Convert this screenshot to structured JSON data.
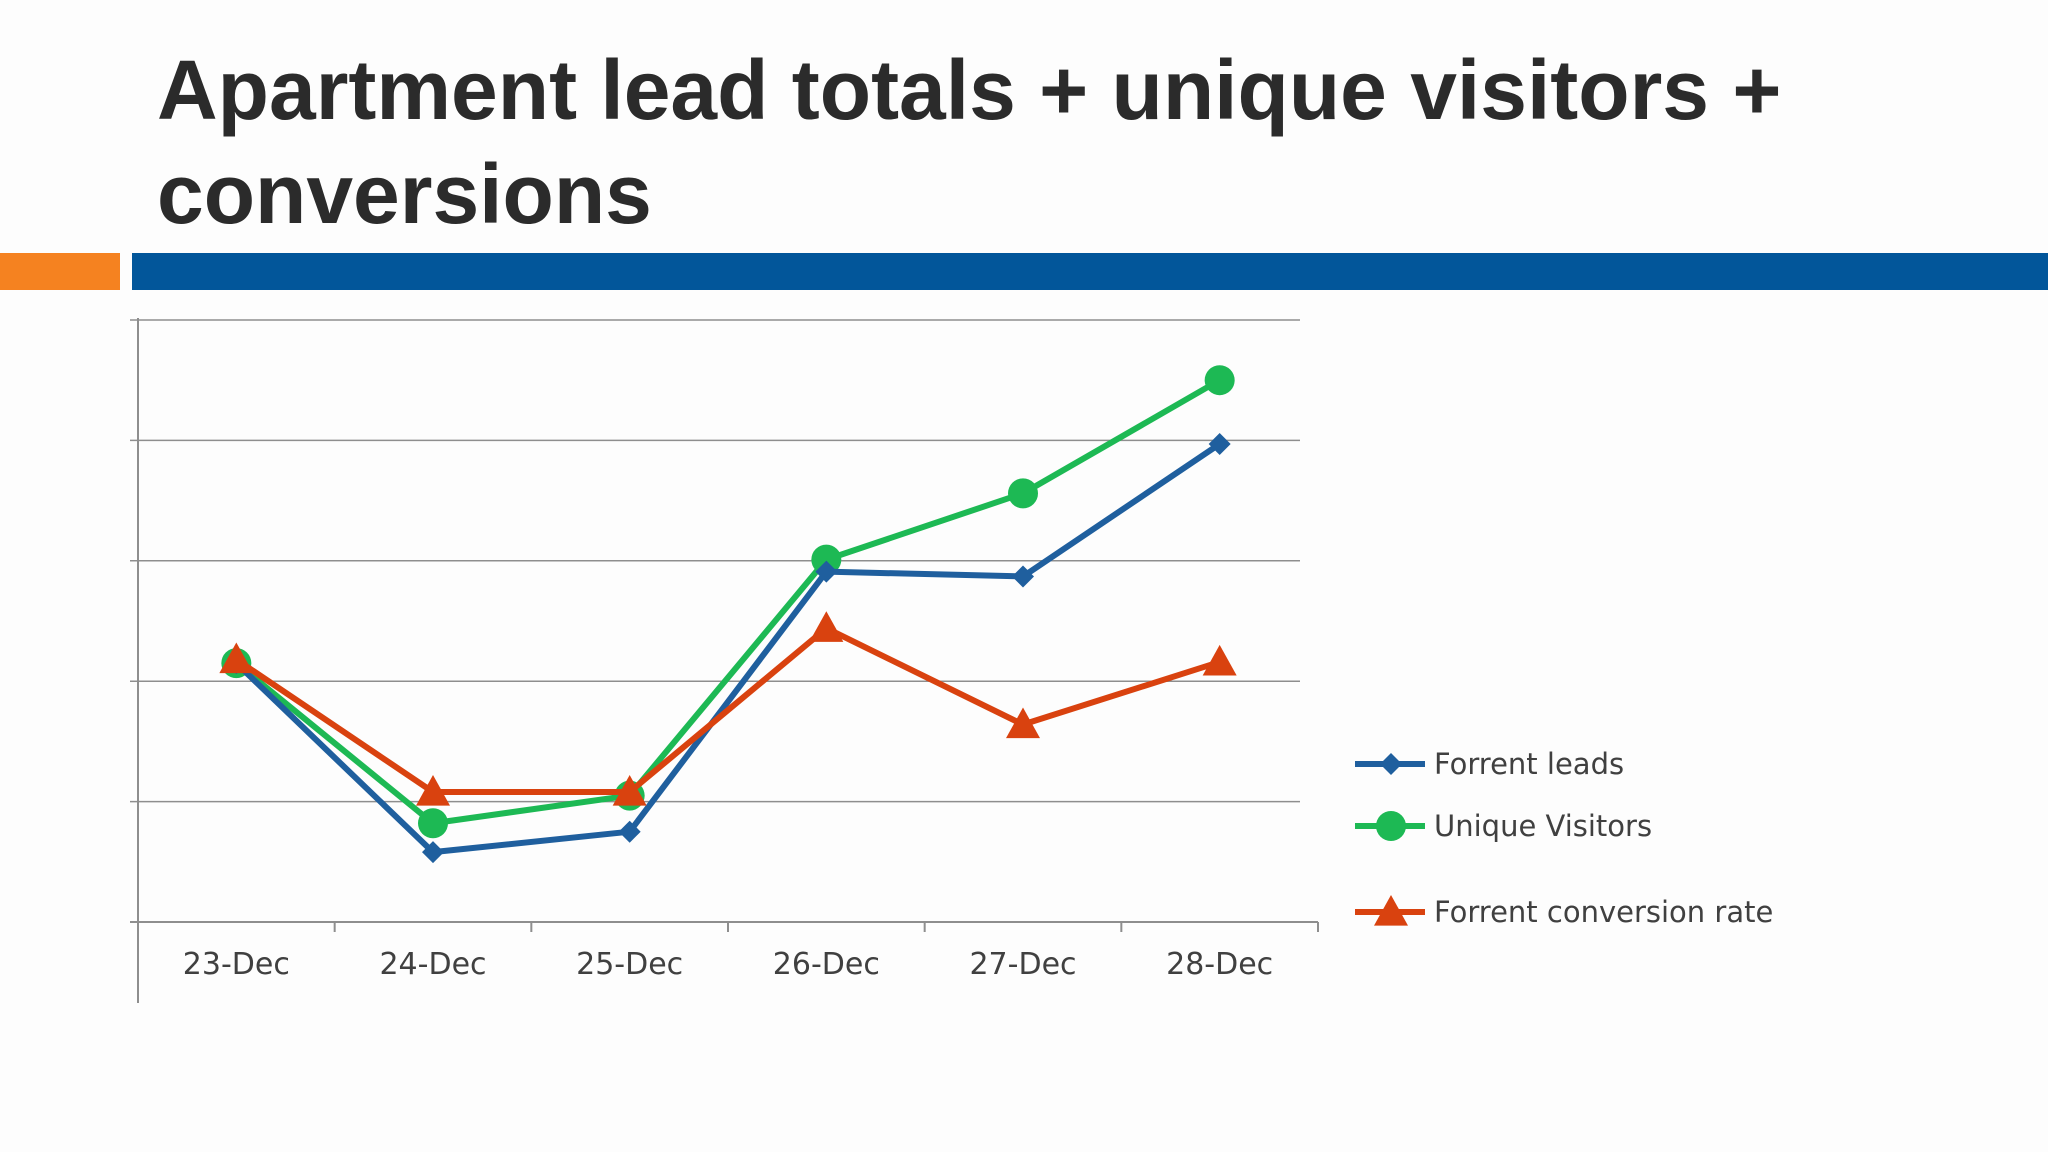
{
  "slide": {
    "title": "Apartment lead totals + unique visitors + conversions",
    "accent_colors": {
      "orange": "#f58220",
      "blue": "#02569a"
    }
  },
  "chart_data": {
    "type": "line",
    "title": "Apartment lead totals + unique visitors + conversions",
    "xlabel": "",
    "ylabel": "",
    "categories": [
      "23-Dec",
      "24-Dec",
      "25-Dec",
      "26-Dec",
      "27-Dec",
      "28-Dec"
    ],
    "ylim": [
      0,
      5
    ],
    "y_tick_labels_shown": false,
    "grid": true,
    "legend_position": "right",
    "series": [
      {
        "name": "Forrent leads",
        "color": "#1f5f9e",
        "marker": "diamond",
        "values": [
          2.15,
          0.58,
          0.75,
          2.91,
          2.87,
          3.97
        ]
      },
      {
        "name": "Unique Visitors",
        "color": "#1db954",
        "marker": "circle",
        "values": [
          2.15,
          0.82,
          1.05,
          3.01,
          3.56,
          4.5
        ]
      },
      {
        "name": "Forrent conversion rate",
        "color": "#d9420f",
        "marker": "triangle",
        "values": [
          2.18,
          1.08,
          1.08,
          2.44,
          1.64,
          2.16
        ]
      }
    ]
  }
}
